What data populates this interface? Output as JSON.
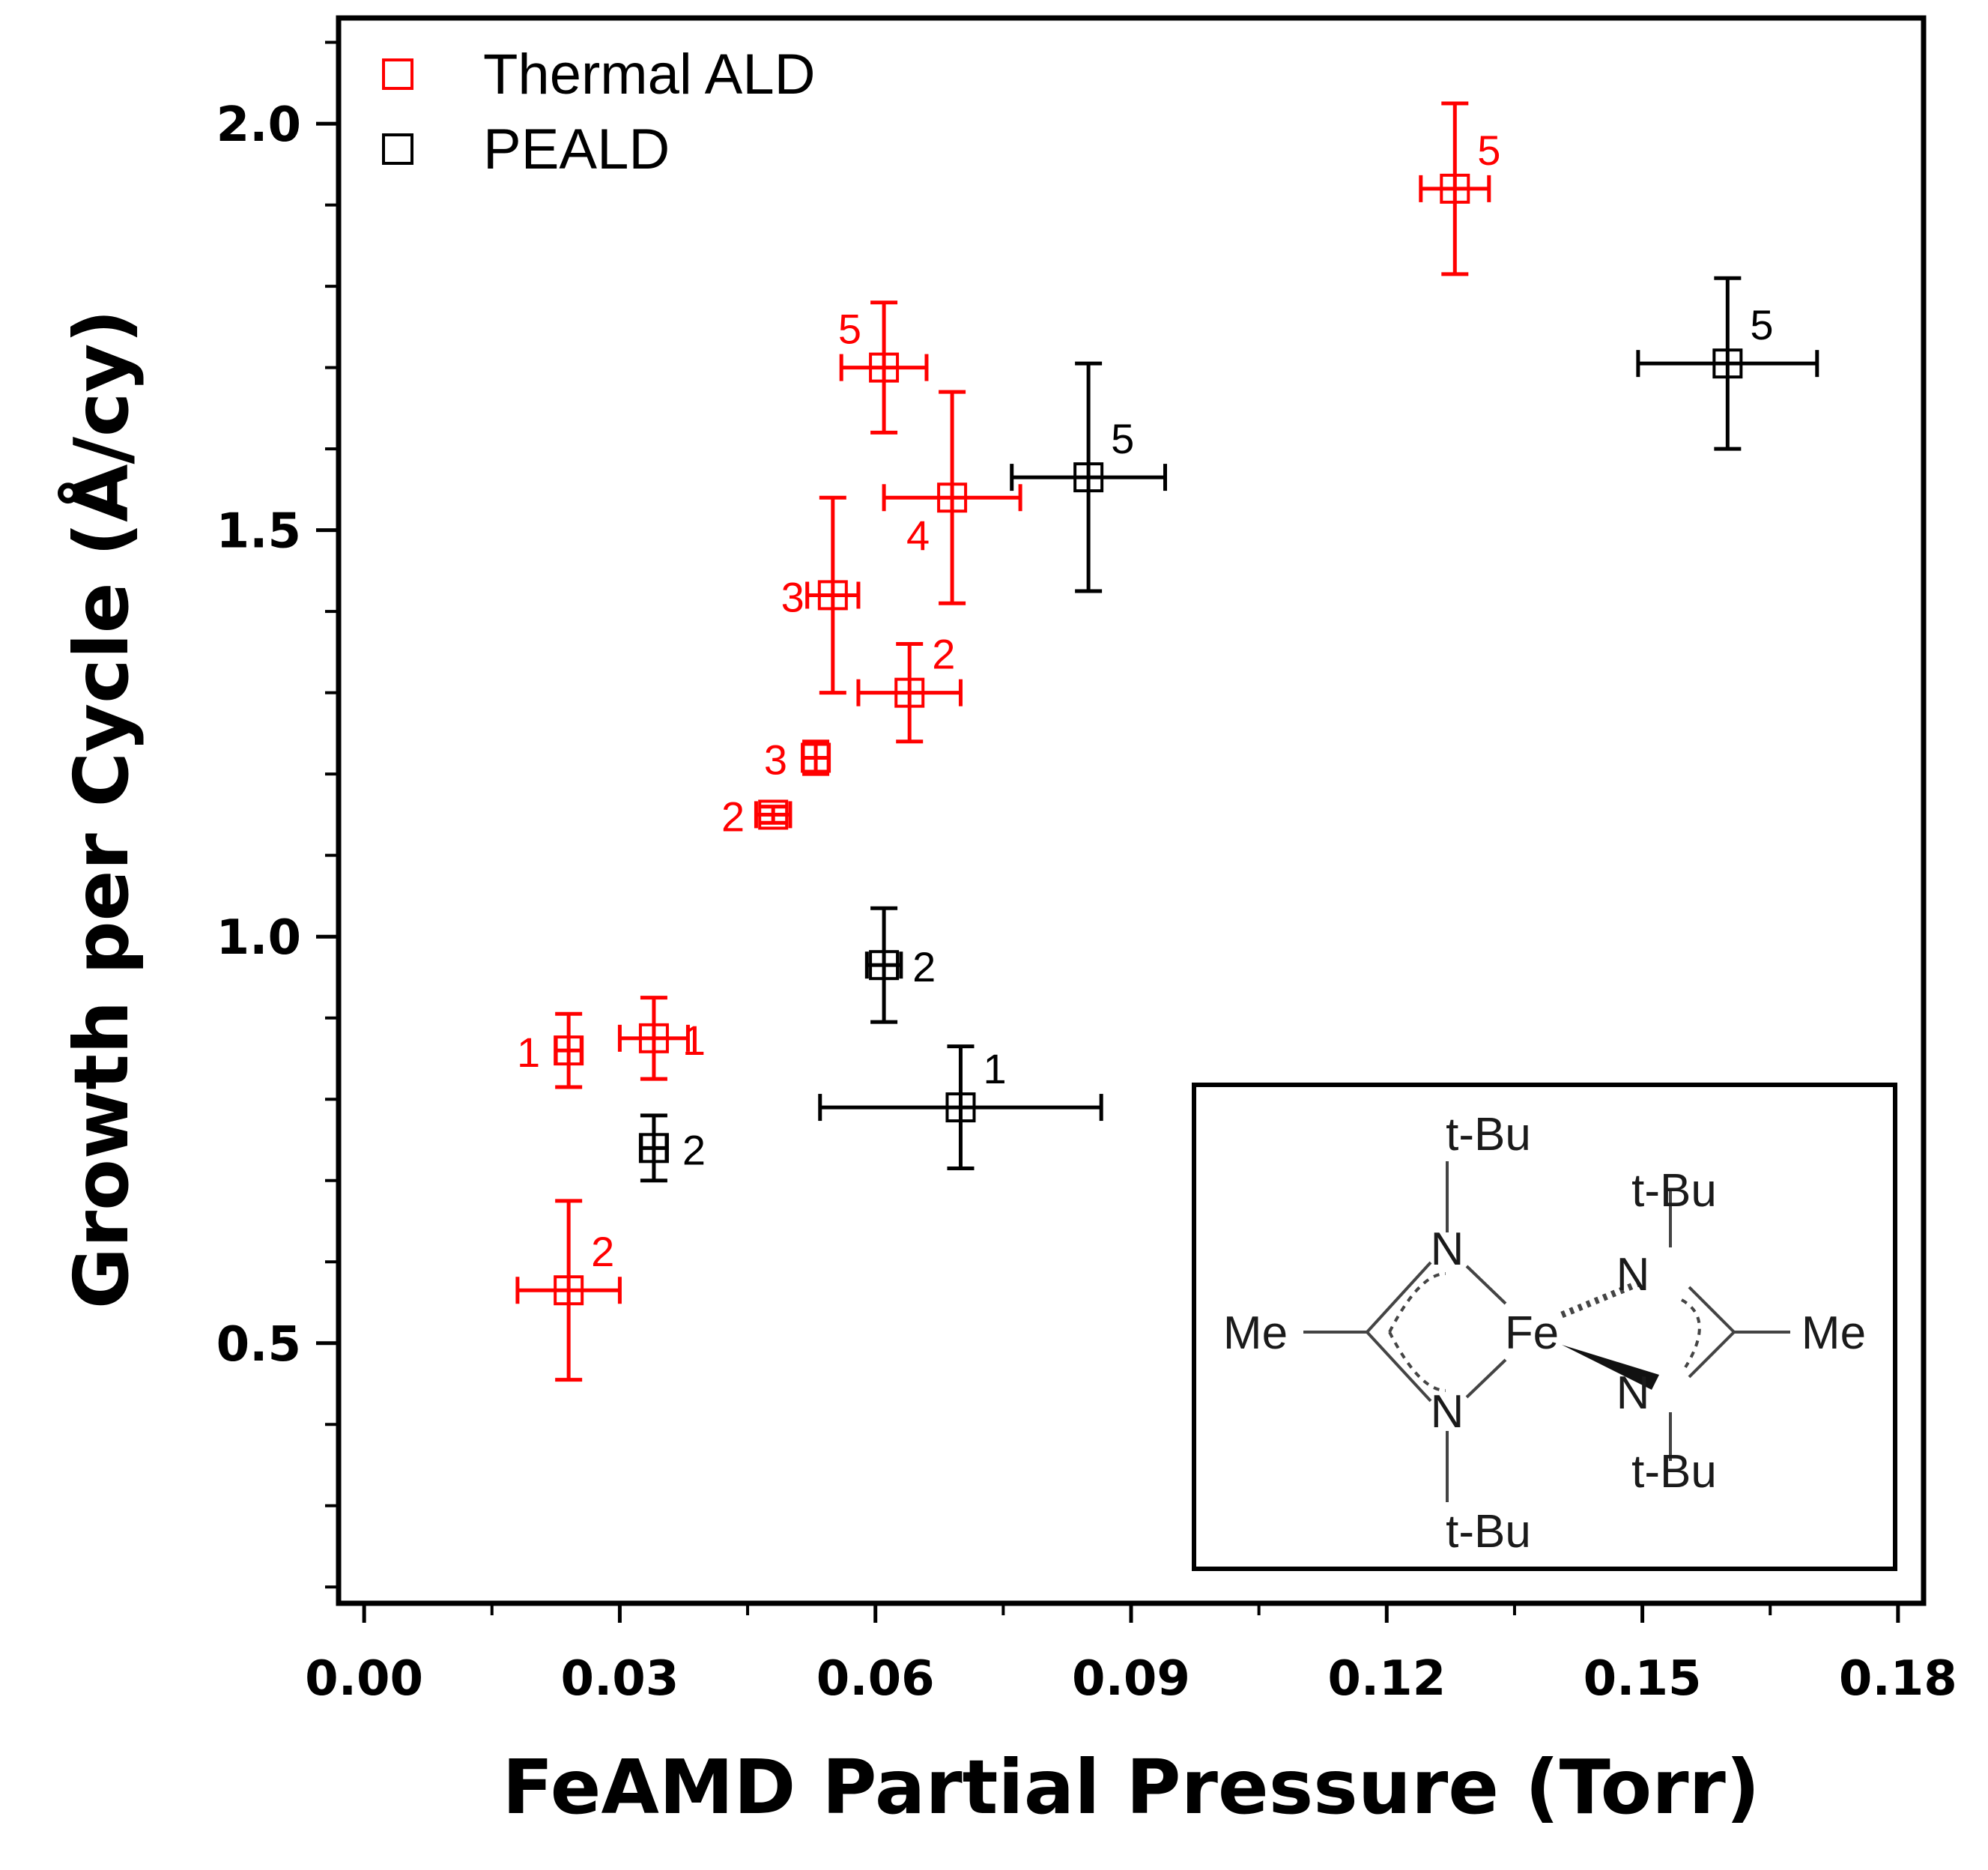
{
  "chart_data": {
    "type": "scatter",
    "title": "",
    "xlabel": "FeAMD Partial Pressure (Torr)",
    "ylabel": "Growth per Cycle (Å/cy)",
    "xlim": [
      -0.003,
      0.183
    ],
    "ylim": [
      0.18,
      2.13
    ],
    "xticks": [
      "0.00",
      "0.03",
      "0.06",
      "0.09",
      "0.12",
      "0.15",
      "0.18"
    ],
    "yticks": [
      "0.5",
      "1.0",
      "1.5",
      "2.0"
    ],
    "legend_position": "top-left",
    "series": [
      {
        "name": "Thermal ALD",
        "color": "#ff0000",
        "points": [
          {
            "x": 0.024,
            "y": 0.86,
            "xerr": 0.0015,
            "yerr": 0.045,
            "label": "1",
            "label_side": "left"
          },
          {
            "x": 0.034,
            "y": 0.875,
            "xerr": 0.004,
            "yerr": 0.05,
            "label": "1",
            "label_side": "right"
          },
          {
            "x": 0.024,
            "y": 0.565,
            "xerr": 0.006,
            "yerr": 0.11,
            "label": "2",
            "label_side": "upper-right"
          },
          {
            "x": 0.048,
            "y": 1.15,
            "xerr": 0.002,
            "yerr": 0.01,
            "label": "2",
            "label_side": "left"
          },
          {
            "x": 0.053,
            "y": 1.22,
            "xerr": 0.0015,
            "yerr": 0.02,
            "label": "3",
            "label_side": "left"
          },
          {
            "x": 0.055,
            "y": 1.42,
            "xerr": 0.003,
            "yerr": 0.12,
            "label": "3",
            "label_side": "left"
          },
          {
            "x": 0.064,
            "y": 1.3,
            "xerr": 0.006,
            "yerr": 0.06,
            "label": "2",
            "label_side": "upper-right"
          },
          {
            "x": 0.069,
            "y": 1.54,
            "xerr": 0.008,
            "yerr": 0.13,
            "label": "4",
            "label_side": "lower-left"
          },
          {
            "x": 0.061,
            "y": 1.7,
            "xerr": 0.005,
            "yerr": 0.08,
            "label": "5",
            "label_side": "upper-left"
          },
          {
            "x": 0.128,
            "y": 1.92,
            "xerr": 0.004,
            "yerr": 0.105,
            "label": "5",
            "label_side": "upper-right"
          }
        ]
      },
      {
        "name": "PEALD",
        "color": "#000000",
        "points": [
          {
            "x": 0.034,
            "y": 0.74,
            "xerr": 0.0015,
            "yerr": 0.04,
            "label": "2",
            "label_side": "right"
          },
          {
            "x": 0.061,
            "y": 0.965,
            "xerr": 0.002,
            "yerr": 0.07,
            "label": "2",
            "label_side": "right"
          },
          {
            "x": 0.07,
            "y": 0.79,
            "xerr": 0.0165,
            "yerr": 0.075,
            "label": "1",
            "label_side": "upper-right"
          },
          {
            "x": 0.085,
            "y": 1.565,
            "xerr": 0.009,
            "yerr": 0.14,
            "label": "5",
            "label_side": "upper-right"
          },
          {
            "x": 0.16,
            "y": 1.705,
            "xerr": 0.0105,
            "yerr": 0.105,
            "label": "5",
            "label_side": "upper-right"
          }
        ]
      }
    ]
  },
  "inset": {
    "top_left_group": "t-Bu",
    "bottom_left_group": "t-Bu",
    "top_right_group": "t-Bu",
    "bottom_right_group": "t-Bu",
    "left_substituent": "Me",
    "right_substituent": "Me",
    "metal": "Fe",
    "n_top_left": "N",
    "n_bottom_left": "N",
    "n_top_right": "N",
    "n_bottom_right": "N"
  }
}
